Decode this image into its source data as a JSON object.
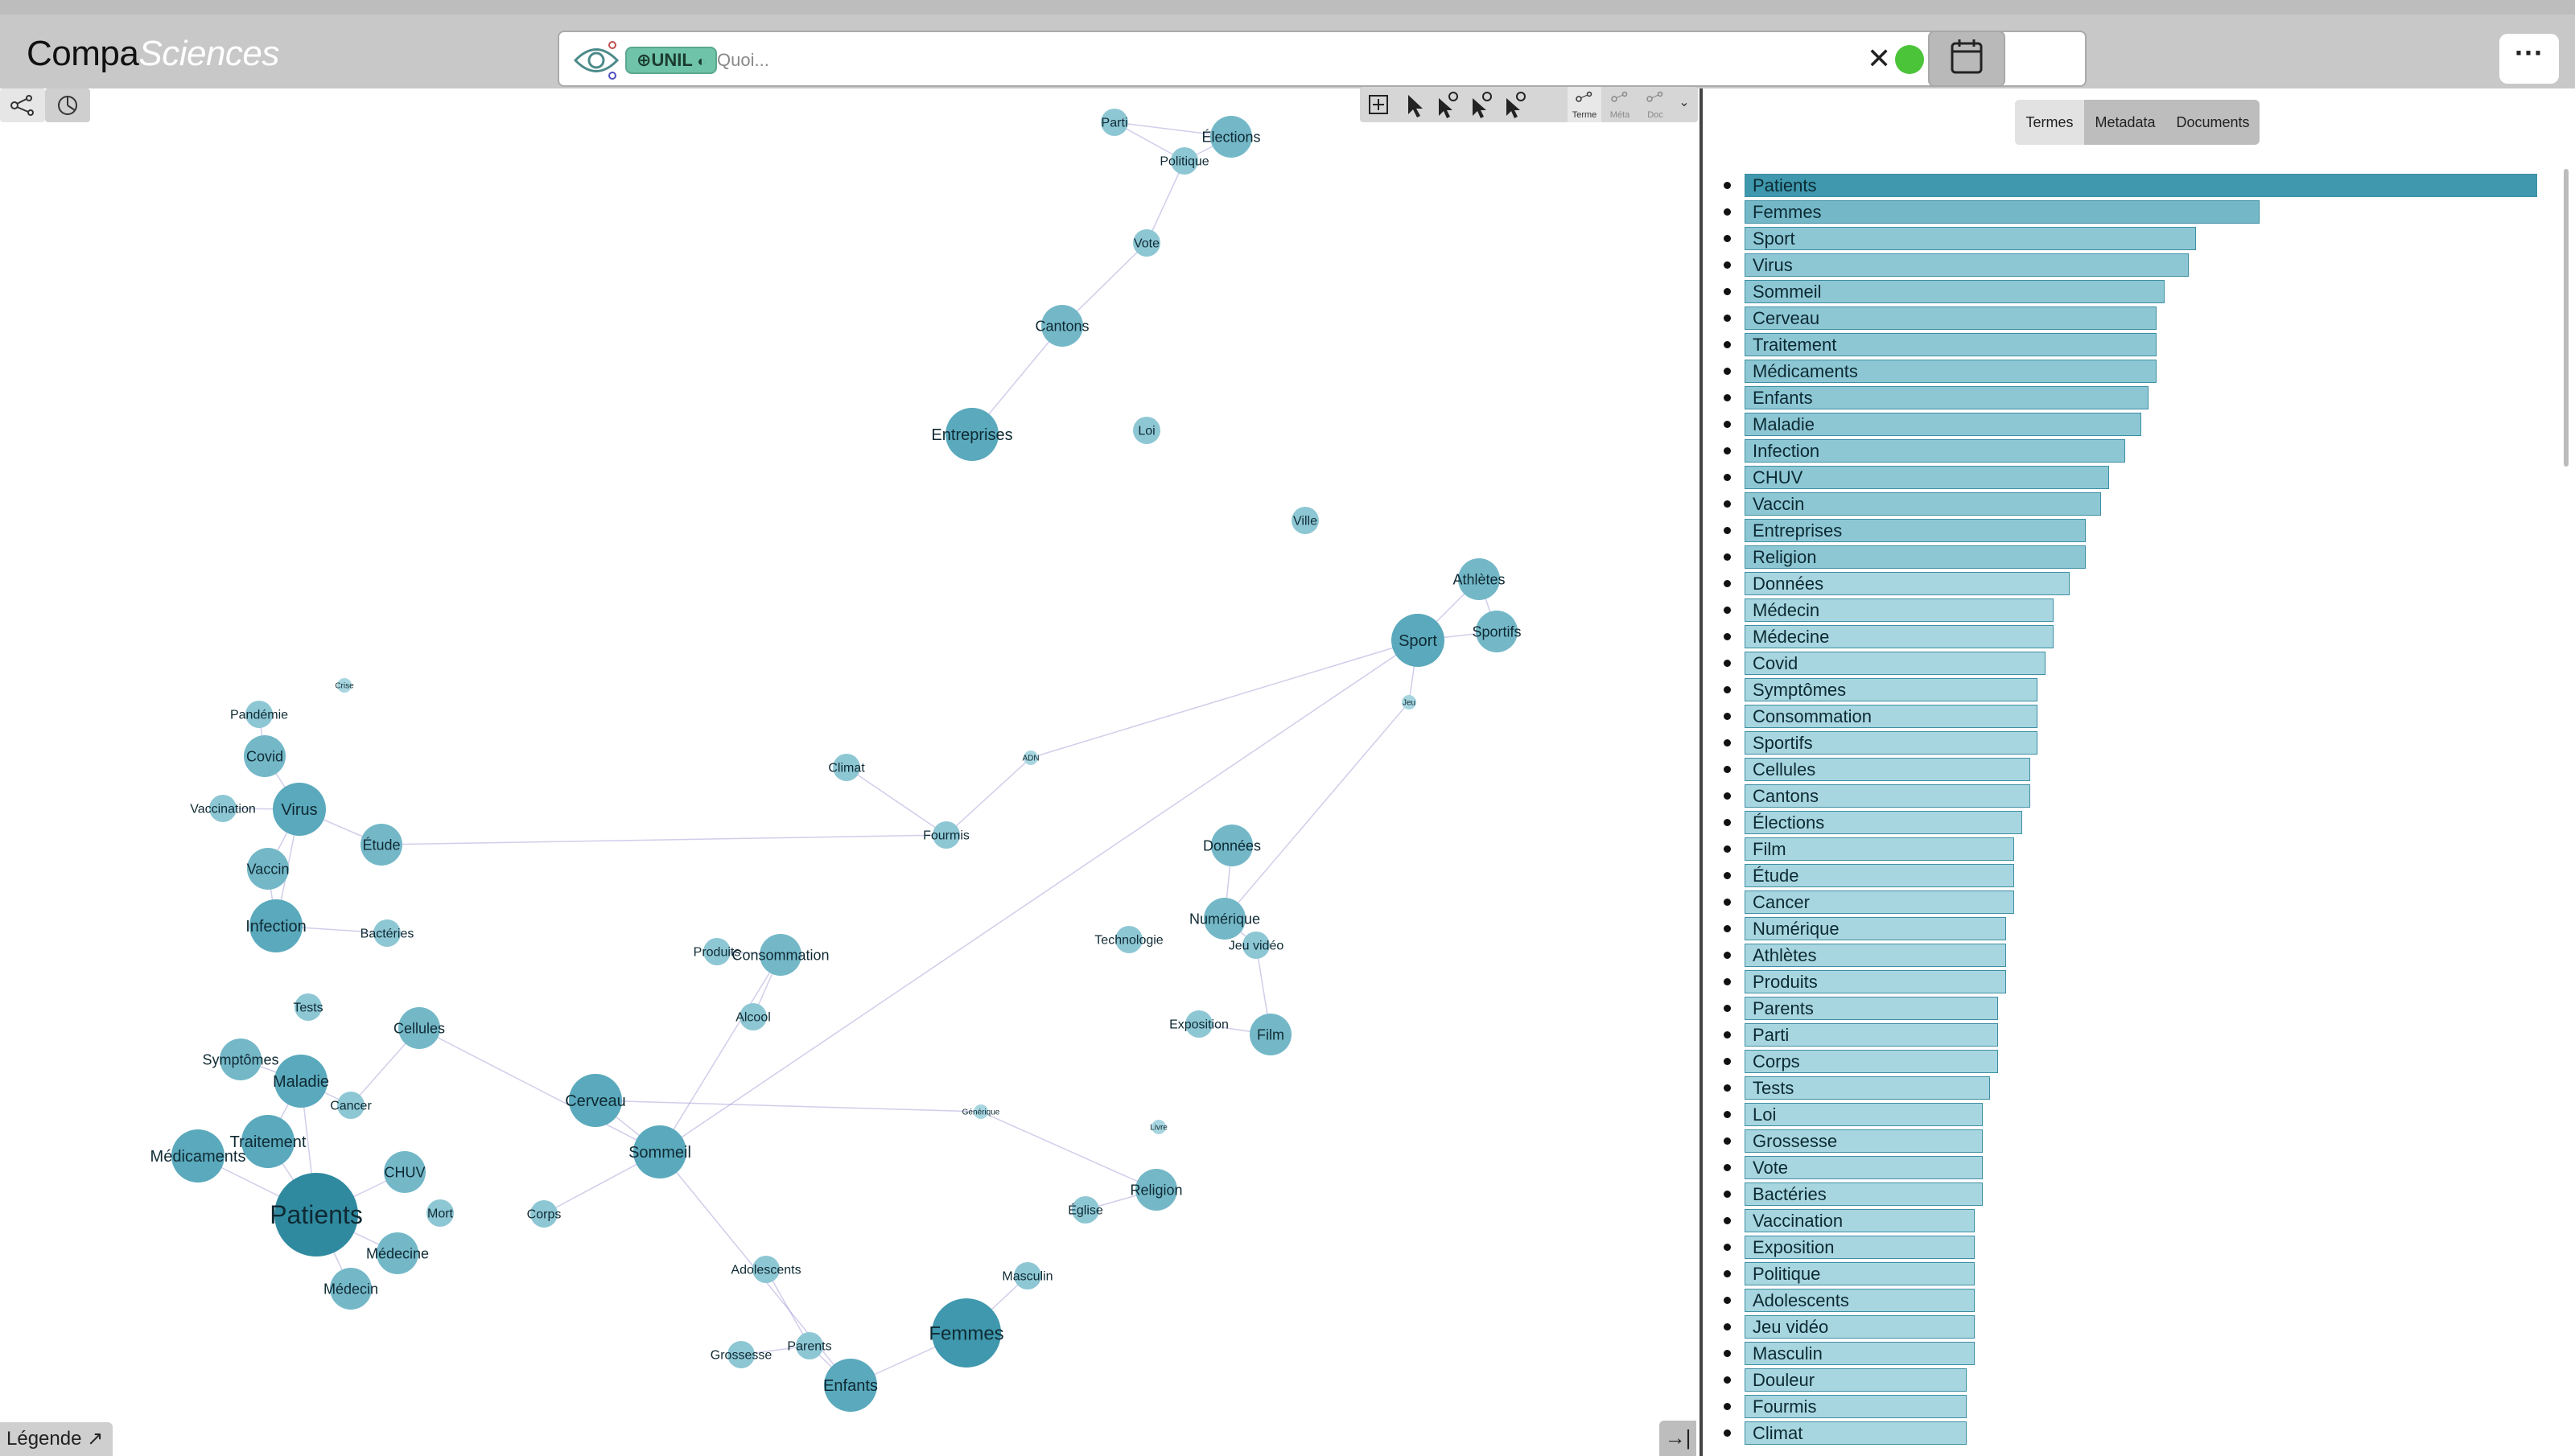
{
  "app": {
    "logo_main": "Compa",
    "logo_sub": "Sciences"
  },
  "search": {
    "tag_label": "UNIL",
    "placeholder": "Quoi...",
    "clear_glyph": "✕",
    "status_color": "#4cc43a"
  },
  "header": {
    "menu_glyph": "···"
  },
  "graph_tools": {
    "terme": "Terme",
    "meta": "Méta",
    "doc": "Doc"
  },
  "tabs": [
    {
      "label": "Termes",
      "active": true
    },
    {
      "label": "Metadata",
      "active": false
    },
    {
      "label": "Documents",
      "active": false
    }
  ],
  "legend_button": {
    "label": "Légende",
    "glyph": "↗"
  },
  "collapse_button": {
    "glyph": "→|"
  },
  "term_list": [
    {
      "label": "Patients",
      "value": 1.0
    },
    {
      "label": "Femmes",
      "value": 0.65
    },
    {
      "label": "Sport",
      "value": 0.57
    },
    {
      "label": "Virus",
      "value": 0.56
    },
    {
      "label": "Sommeil",
      "value": 0.53
    },
    {
      "label": "Cerveau",
      "value": 0.52
    },
    {
      "label": "Traitement",
      "value": 0.52
    },
    {
      "label": "Médicaments",
      "value": 0.52
    },
    {
      "label": "Enfants",
      "value": 0.51
    },
    {
      "label": "Maladie",
      "value": 0.5
    },
    {
      "label": "Infection",
      "value": 0.48
    },
    {
      "label": "CHUV",
      "value": 0.46
    },
    {
      "label": "Vaccin",
      "value": 0.45
    },
    {
      "label": "Entreprises",
      "value": 0.43
    },
    {
      "label": "Religion",
      "value": 0.43
    },
    {
      "label": "Données",
      "value": 0.41
    },
    {
      "label": "Médecin",
      "value": 0.39
    },
    {
      "label": "Médecine",
      "value": 0.39
    },
    {
      "label": "Covid",
      "value": 0.38
    },
    {
      "label": "Symptômes",
      "value": 0.37
    },
    {
      "label": "Consommation",
      "value": 0.37
    },
    {
      "label": "Sportifs",
      "value": 0.37
    },
    {
      "label": "Cellules",
      "value": 0.36
    },
    {
      "label": "Cantons",
      "value": 0.36
    },
    {
      "label": "Élections",
      "value": 0.35
    },
    {
      "label": "Film",
      "value": 0.34
    },
    {
      "label": "Étude",
      "value": 0.34
    },
    {
      "label": "Cancer",
      "value": 0.34
    },
    {
      "label": "Numérique",
      "value": 0.33
    },
    {
      "label": "Athlètes",
      "value": 0.33
    },
    {
      "label": "Produits",
      "value": 0.33
    },
    {
      "label": "Parents",
      "value": 0.32
    },
    {
      "label": "Parti",
      "value": 0.32
    },
    {
      "label": "Corps",
      "value": 0.32
    },
    {
      "label": "Tests",
      "value": 0.31
    },
    {
      "label": "Loi",
      "value": 0.3
    },
    {
      "label": "Grossesse",
      "value": 0.3
    },
    {
      "label": "Vote",
      "value": 0.3
    },
    {
      "label": "Bactéries",
      "value": 0.3
    },
    {
      "label": "Vaccination",
      "value": 0.29
    },
    {
      "label": "Exposition",
      "value": 0.29
    },
    {
      "label": "Politique",
      "value": 0.29
    },
    {
      "label": "Adolescents",
      "value": 0.29
    },
    {
      "label": "Jeu vidéo",
      "value": 0.29
    },
    {
      "label": "Masculin",
      "value": 0.29
    },
    {
      "label": "Douleur",
      "value": 0.28
    },
    {
      "label": "Fourmis",
      "value": 0.28
    },
    {
      "label": "Climat",
      "value": 0.28
    }
  ],
  "nodes": [
    {
      "label": "Patients",
      "size": 5
    },
    {
      "label": "Médicaments",
      "size": 3
    },
    {
      "label": "Traitement",
      "size": 3
    },
    {
      "label": "Maladie",
      "size": 3
    },
    {
      "label": "CHUV",
      "size": 2
    },
    {
      "label": "Médecine",
      "size": 2
    },
    {
      "label": "Médecin",
      "size": 2
    },
    {
      "label": "Mort",
      "size": 1
    },
    {
      "label": "Cancer",
      "size": 1
    },
    {
      "label": "Symptômes",
      "size": 2
    },
    {
      "label": "Tests",
      "size": 1
    },
    {
      "label": "Infection",
      "size": 3
    },
    {
      "label": "Vaccin",
      "size": 2
    },
    {
      "label": "Virus",
      "size": 3
    },
    {
      "label": "Covid",
      "size": 2
    },
    {
      "label": "Étude",
      "size": 2
    },
    {
      "label": "Bactéries",
      "size": 1
    },
    {
      "label": "Cellules",
      "size": 2
    },
    {
      "label": "Vaccination",
      "size": 1
    },
    {
      "label": "Pandémie",
      "size": 1
    },
    {
      "label": "Crise",
      "size": 0
    },
    {
      "label": "Cerveau",
      "size": 3
    },
    {
      "label": "Sommeil",
      "size": 3
    },
    {
      "label": "Corps",
      "size": 1
    },
    {
      "label": "Femmes",
      "size": 4
    },
    {
      "label": "Enfants",
      "size": 3
    },
    {
      "label": "Parents",
      "size": 1
    },
    {
      "label": "Grossesse",
      "size": 1
    },
    {
      "label": "Adolescents",
      "size": 1
    },
    {
      "label": "Masculin",
      "size": 1
    },
    {
      "label": "Religion",
      "size": 2
    },
    {
      "label": "Église",
      "size": 1
    },
    {
      "label": "Consommation",
      "size": 2
    },
    {
      "label": "Produits",
      "size": 1
    },
    {
      "label": "Alcool",
      "size": 1
    },
    {
      "label": "Climat",
      "size": 1
    },
    {
      "label": "Fourmis",
      "size": 1
    },
    {
      "label": "Données",
      "size": 2
    },
    {
      "label": "Numérique",
      "size": 2
    },
    {
      "label": "Technologie",
      "size": 1
    },
    {
      "label": "Jeu vidéo",
      "size": 1
    },
    {
      "label": "Film",
      "size": 2
    },
    {
      "label": "Exposition",
      "size": 1
    },
    {
      "label": "Sport",
      "size": 3
    },
    {
      "label": "Sportifs",
      "size": 2
    },
    {
      "label": "Athlètes",
      "size": 2
    },
    {
      "label": "Ville",
      "size": 1
    },
    {
      "label": "Entreprises",
      "size": 3
    },
    {
      "label": "Loi",
      "size": 1
    },
    {
      "label": "Cantons",
      "size": 2
    },
    {
      "label": "Parti",
      "size": 1
    },
    {
      "label": "Élections",
      "size": 2
    },
    {
      "label": "Politique",
      "size": 1
    },
    {
      "label": "Vote",
      "size": 1
    },
    {
      "label": "Livre",
      "size": 0
    },
    {
      "label": "Générique",
      "size": 0
    },
    {
      "label": "ADN",
      "size": 0
    },
    {
      "label": "Jeu",
      "size": 0
    }
  ]
}
